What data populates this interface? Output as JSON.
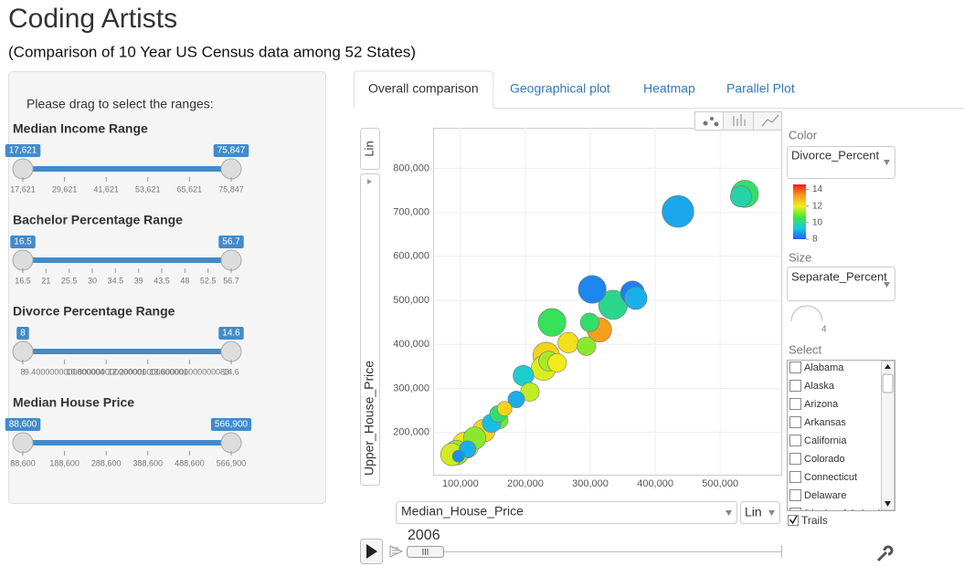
{
  "header": {
    "title": "Coding Artists",
    "subtitle": "(Comparison of 10 Year US Census data among 52 States)"
  },
  "sidebar": {
    "instruction": "Please drag to select the ranges:",
    "sliders": [
      {
        "label": "Median Income Range",
        "min": "17,621",
        "max": "75,847",
        "ticks": [
          "17,621",
          "29,621",
          "41,621",
          "53,621",
          "65,621",
          "75,847"
        ]
      },
      {
        "label": "Bachelor Percentage Range",
        "min": "16.5",
        "max": "56.7",
        "ticks": [
          "16.5",
          "21",
          "25.5",
          "30",
          "34.5",
          "39",
          "43.5",
          "48",
          "52.5",
          "56.7"
        ]
      },
      {
        "label": "Divorce Percentage Range",
        "min": "8",
        "max": "14.6",
        "ticks": [
          "8",
          "9.4000000000000004",
          "10.800000000000001",
          "12.200000000000001",
          "13.600000000000083",
          "14.6"
        ]
      },
      {
        "label": "Median House Price",
        "min": "88,600",
        "max": "566,900",
        "ticks": [
          "88,600",
          "188,600",
          "288,600",
          "388,600",
          "488,600",
          "566,900"
        ]
      }
    ]
  },
  "tabs": [
    "Overall comparison",
    "Geographical plot",
    "Heatmap",
    "Parallel Plot"
  ],
  "chart_data": {
    "type": "scatter",
    "x_label": "Median_House_Price",
    "y_label": "Upper_House_Price",
    "xlim": [
      58000,
      594000
    ],
    "ylim": [
      104000,
      892000
    ],
    "xticks": [
      {
        "value": 100000,
        "label": "100,000"
      },
      {
        "value": 200000,
        "label": "200,000"
      },
      {
        "value": 300000,
        "label": "300,000"
      },
      {
        "value": 400000,
        "label": "400,000"
      },
      {
        "value": 500000,
        "label": "500,000"
      }
    ],
    "yticks": [
      {
        "value": 200000,
        "label": "200,000"
      },
      {
        "value": 300000,
        "label": "300,000"
      },
      {
        "value": 400000,
        "label": "400,000"
      },
      {
        "value": 500000,
        "label": "500,000"
      },
      {
        "value": 600000,
        "label": "600,000"
      },
      {
        "value": 700000,
        "label": "700,000"
      },
      {
        "value": 800000,
        "label": "800,000"
      }
    ],
    "grid": true,
    "x": [
      435000,
      538000,
      532000,
      303000,
      365000,
      370000,
      335000,
      241000,
      299000,
      314000,
      294000,
      266000,
      232000,
      236000,
      249000,
      228000,
      197000,
      207000,
      186000,
      168000,
      159000,
      158000,
      148000,
      136000,
      122000,
      108000,
      111000,
      94000,
      87000,
      97000
    ],
    "y": [
      702000,
      742000,
      736000,
      525000,
      517000,
      505000,
      490000,
      450000,
      450000,
      433000,
      396000,
      404000,
      375000,
      362000,
      358000,
      346000,
      329000,
      292000,
      275000,
      254000,
      229000,
      242000,
      221000,
      204000,
      187000,
      171000,
      162000,
      154000,
      150000,
      146000
    ],
    "color_values": [
      8.9,
      10.3,
      9.8,
      8.5,
      8.4,
      9.0,
      10.0,
      10.4,
      10.3,
      13.2,
      11.2,
      12.2,
      12.4,
      11.4,
      12.0,
      11.8,
      9.5,
      11.6,
      9.0,
      12.4,
      11.0,
      10.2,
      9.2,
      12.3,
      11.2,
      12.1,
      9.0,
      11.3,
      11.7,
      8.6
    ],
    "sizes": [
      4.0,
      3.3,
      2.4,
      3.4,
      2.8,
      2.6,
      3.6,
      3.4,
      2.0,
      2.9,
      2.0,
      2.3,
      3.2,
      2.2,
      2.0,
      2.9,
      2.3,
      2.0,
      1.7,
      1.4,
      2.0,
      1.7,
      2.0,
      2.6,
      2.6,
      3.2,
      1.7,
      2.9,
      2.6,
      1.0
    ],
    "color_label": "Color",
    "color_variable": "Divorce_Percent",
    "colorlim": [
      8,
      14.6
    ],
    "color_ticks": [
      8,
      10,
      12,
      14
    ],
    "colorscale": [
      "#1f5ff5",
      "#18c8e6",
      "#3ee63a",
      "#f2ee1a",
      "#f59a1c",
      "#f41c1c"
    ],
    "size_label": "Size",
    "size_variable": "Separate_Percent",
    "size_max": "4"
  },
  "controls": {
    "y_scale": "Lin",
    "x_scale": "Lin",
    "year": "2006",
    "select_label": "Select",
    "states": [
      "Alabama",
      "Alaska",
      "Arizona",
      "Arkansas",
      "California",
      "Colorado",
      "Connecticut",
      "Delaware",
      "District of Columbia"
    ],
    "trails": "Trails"
  }
}
